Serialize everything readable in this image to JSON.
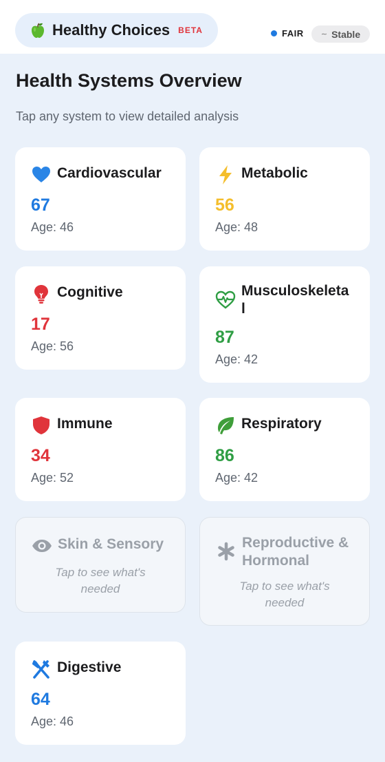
{
  "header": {
    "app_name": "Healthy Choices",
    "beta_label": "BETA",
    "status_label": "FAIR",
    "status_color": "#1f7ae0",
    "trend_label": "Stable",
    "brand_icon": "green-apple-icon"
  },
  "overview": {
    "title": "Health Systems Overview",
    "subtitle": "Tap any system to view detailed analysis"
  },
  "systems": [
    {
      "name": "Cardiovascular",
      "score": "67",
      "age": "Age: 46",
      "icon": "heart-icon",
      "color": "#1f7ae0"
    },
    {
      "name": "Metabolic",
      "score": "56",
      "age": "Age: 48",
      "icon": "lightning-icon",
      "color": "#f4be2c"
    },
    {
      "name": "Cognitive",
      "score": "17",
      "age": "Age: 56",
      "icon": "lightbulb-icon",
      "color": "#e0343b"
    },
    {
      "name": "Musculoskeletal",
      "score": "87",
      "age": "Age: 42",
      "icon": "heartbeat-icon",
      "color": "#2f9e44"
    },
    {
      "name": "Immune",
      "score": "34",
      "age": "Age: 52",
      "icon": "shield-icon",
      "color": "#e0343b"
    },
    {
      "name": "Respiratory",
      "score": "86",
      "age": "Age: 42",
      "icon": "leaf-icon",
      "color": "#2f9e44"
    },
    {
      "name": "Skin & Sensory",
      "hint": "Tap to see what's needed",
      "icon": "eye-icon",
      "locked": true
    },
    {
      "name": "Reproductive & Hormonal",
      "hint": "Tap to see what's needed",
      "icon": "asterisk-icon",
      "locked": true
    },
    {
      "name": "Digestive",
      "score": "64",
      "age": "Age: 46",
      "icon": "utensils-icon",
      "color": "#1f7ae0"
    }
  ]
}
